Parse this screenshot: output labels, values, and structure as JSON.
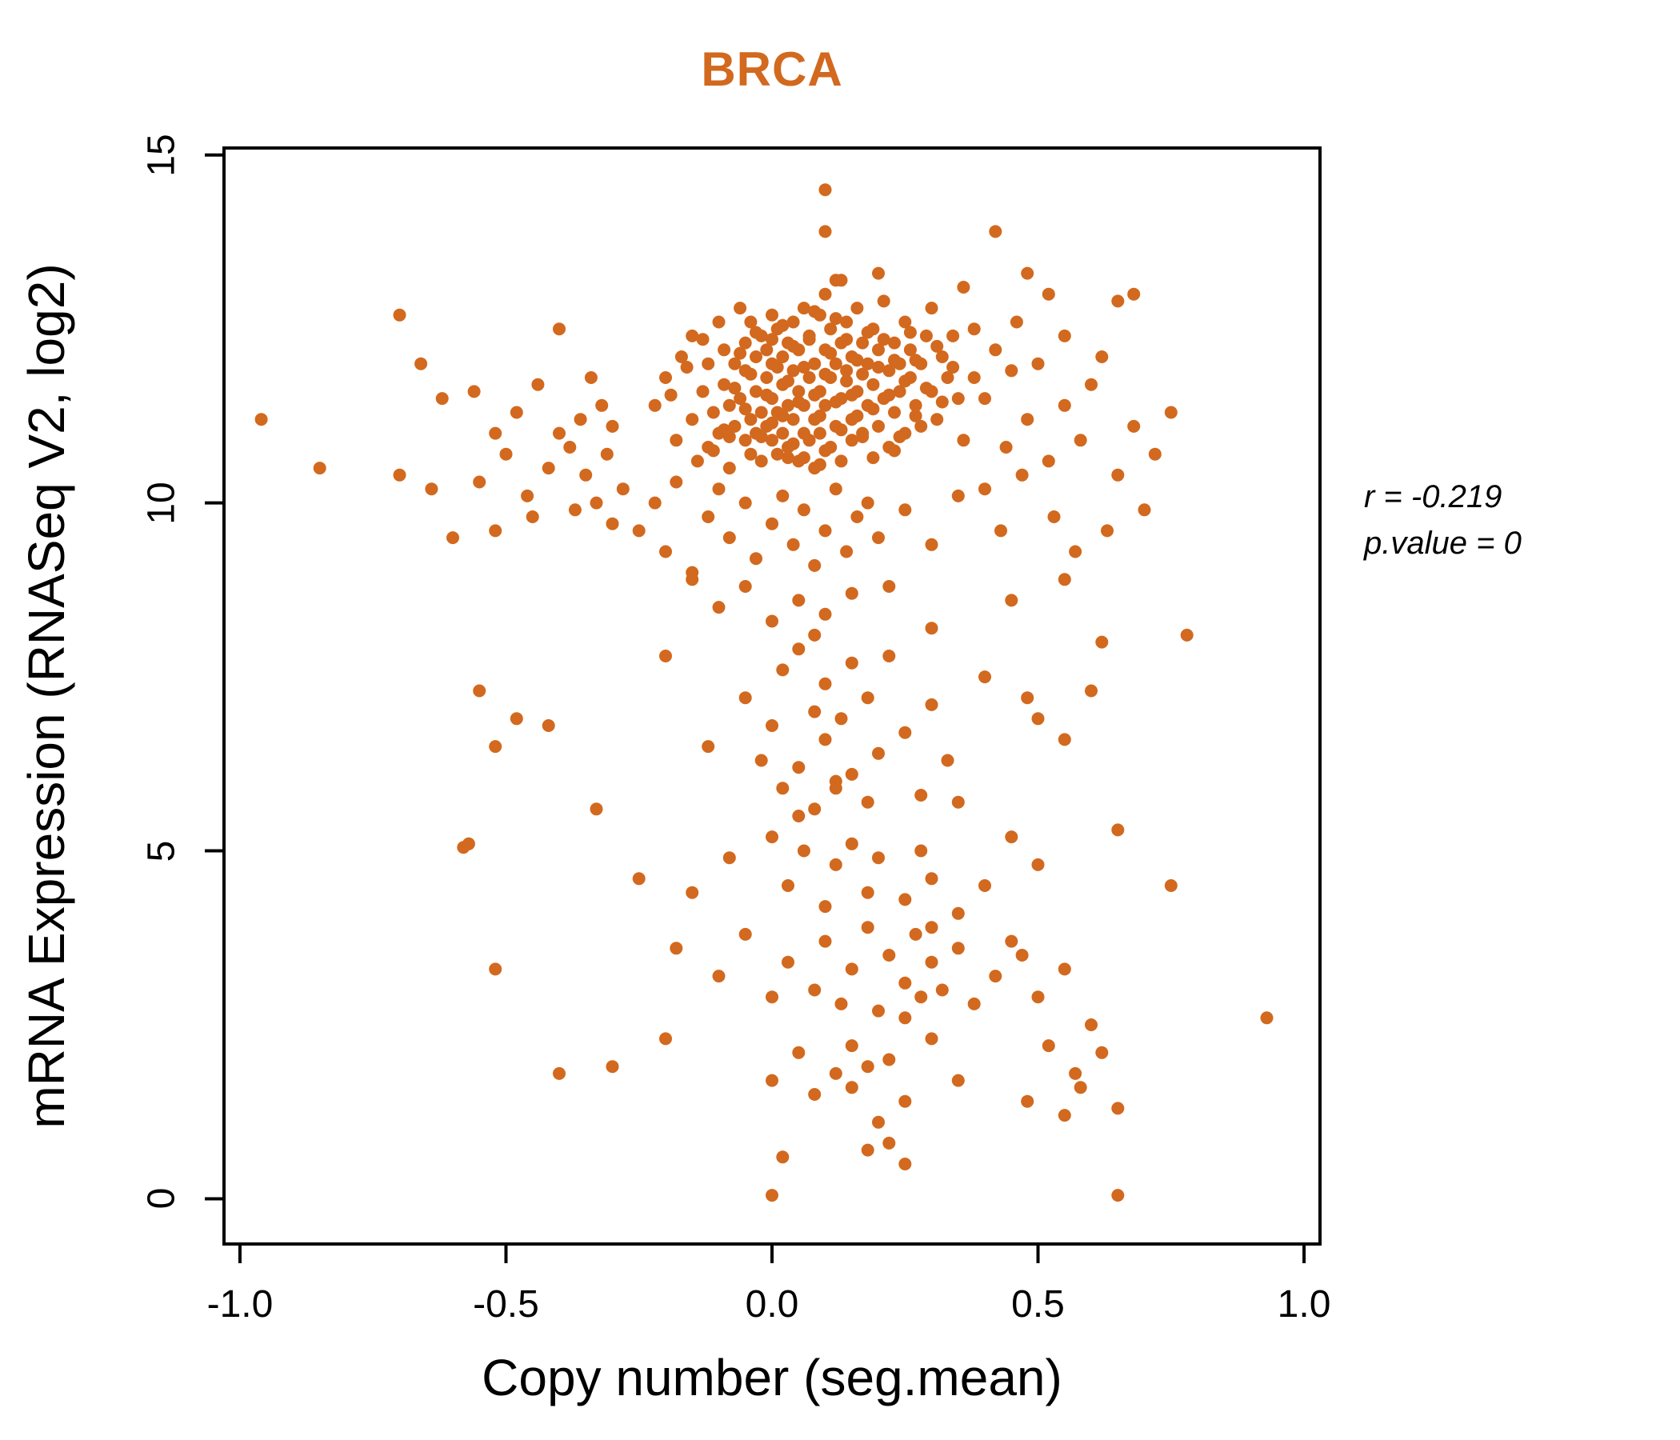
{
  "title": "BRCA",
  "title_color": "#d2691e",
  "point_color": "#d2691e",
  "annotation": {
    "line1": "r = -0.219",
    "line2": "p.value = 0"
  },
  "chart_data": {
    "type": "scatter",
    "title": "BRCA",
    "xlabel": "Copy number (seg.mean)",
    "ylabel": "mRNA Expression (RNASeq V2, log2)",
    "xlim": [
      -1.03,
      1.03
    ],
    "ylim": [
      -0.65,
      15.1
    ],
    "xticks": [
      -1.0,
      -0.5,
      0.0,
      0.5,
      1.0
    ],
    "yticks": [
      0,
      5,
      10,
      15
    ],
    "xtick_labels": [
      "-1.0",
      "-0.5",
      "0.0",
      "0.5",
      "1.0"
    ],
    "ytick_labels": [
      "0",
      "5",
      "10",
      "15"
    ],
    "grid": false,
    "legend_position": "none",
    "correlation_r": -0.219,
    "p_value": 0,
    "points": [
      [
        -0.22,
        11.4
      ],
      [
        -0.2,
        11.8
      ],
      [
        -0.18,
        10.9
      ],
      [
        -0.17,
        12.1
      ],
      [
        -0.15,
        11.2
      ],
      [
        -0.15,
        12.4
      ],
      [
        -0.14,
        10.6
      ],
      [
        -0.13,
        11.6
      ],
      [
        -0.12,
        12.0
      ],
      [
        -0.12,
        10.8
      ],
      [
        -0.11,
        11.3
      ],
      [
        -0.1,
        12.6
      ],
      [
        -0.1,
        11.0
      ],
      [
        -0.09,
        11.7
      ],
      [
        -0.09,
        12.2
      ],
      [
        -0.08,
        10.5
      ],
      [
        -0.08,
        11.4
      ],
      [
        -0.07,
        12.0
      ],
      [
        -0.07,
        11.1
      ],
      [
        -0.06,
        12.8
      ],
      [
        -0.06,
        11.5
      ],
      [
        -0.05,
        10.9
      ],
      [
        -0.05,
        11.9
      ],
      [
        -0.05,
        12.3
      ],
      [
        -0.04,
        11.2
      ],
      [
        -0.04,
        12.6
      ],
      [
        -0.04,
        10.7
      ],
      [
        -0.03,
        11.6
      ],
      [
        -0.03,
        12.1
      ],
      [
        -0.03,
        11.0
      ],
      [
        -0.02,
        12.4
      ],
      [
        -0.02,
        11.3
      ],
      [
        -0.02,
        10.6
      ],
      [
        -0.01,
        11.8
      ],
      [
        -0.01,
        12.2
      ],
      [
        -0.01,
        11.1
      ],
      [
        0.0,
        12.7
      ],
      [
        0.0,
        11.5
      ],
      [
        0.0,
        10.9
      ],
      [
        0.0,
        12.0
      ],
      [
        0.01,
        11.3
      ],
      [
        0.01,
        12.5
      ],
      [
        0.01,
        10.7
      ],
      [
        0.02,
        11.7
      ],
      [
        0.02,
        12.1
      ],
      [
        0.02,
        11.0
      ],
      [
        0.03,
        12.3
      ],
      [
        0.03,
        11.4
      ],
      [
        0.03,
        10.8
      ],
      [
        0.04,
        11.9
      ],
      [
        0.04,
        12.6
      ],
      [
        0.04,
        11.2
      ],
      [
        0.05,
        10.6
      ],
      [
        0.05,
        11.6
      ],
      [
        0.05,
        12.2
      ],
      [
        0.06,
        11.0
      ],
      [
        0.06,
        12.8
      ],
      [
        0.06,
        11.4
      ],
      [
        0.07,
        11.8
      ],
      [
        0.07,
        10.9
      ],
      [
        0.07,
        12.4
      ],
      [
        0.08,
        11.2
      ],
      [
        0.08,
        12.0
      ],
      [
        0.08,
        10.5
      ],
      [
        0.09,
        11.6
      ],
      [
        0.09,
        12.7
      ],
      [
        0.09,
        11.0
      ],
      [
        0.1,
        12.2
      ],
      [
        0.1,
        11.4
      ],
      [
        0.1,
        13.0
      ],
      [
        0.11,
        11.8
      ],
      [
        0.11,
        10.8
      ],
      [
        0.11,
        12.5
      ],
      [
        0.12,
        11.1
      ],
      [
        0.12,
        12.0
      ],
      [
        0.12,
        13.2
      ],
      [
        0.13,
        11.5
      ],
      [
        0.13,
        12.3
      ],
      [
        0.13,
        10.6
      ],
      [
        0.14,
        11.9
      ],
      [
        0.14,
        12.6
      ],
      [
        0.15,
        11.2
      ],
      [
        0.15,
        12.1
      ],
      [
        0.15,
        10.9
      ],
      [
        0.16,
        11.6
      ],
      [
        0.16,
        12.8
      ],
      [
        0.17,
        11.0
      ],
      [
        0.17,
        12.3
      ],
      [
        0.18,
        11.4
      ],
      [
        0.18,
        12.0
      ],
      [
        0.19,
        11.7
      ],
      [
        0.19,
        12.5
      ],
      [
        0.2,
        11.1
      ],
      [
        0.2,
        12.2
      ],
      [
        0.21,
        11.5
      ],
      [
        0.21,
        12.9
      ],
      [
        0.22,
        11.9
      ],
      [
        0.22,
        10.8
      ],
      [
        0.23,
        12.3
      ],
      [
        0.23,
        11.3
      ],
      [
        0.24,
        12.0
      ],
      [
        0.24,
        11.6
      ],
      [
        0.25,
        12.6
      ],
      [
        0.25,
        11.0
      ],
      [
        0.26,
        11.8
      ],
      [
        0.26,
        12.2
      ],
      [
        0.27,
        11.4
      ],
      [
        0.28,
        12.0
      ],
      [
        0.28,
        11.1
      ],
      [
        0.29,
        12.4
      ],
      [
        0.3,
        11.6
      ],
      [
        0.3,
        12.8
      ],
      [
        0.31,
        11.2
      ],
      [
        0.32,
        12.1
      ],
      [
        0.33,
        11.8
      ],
      [
        0.34,
        12.4
      ],
      [
        0.35,
        11.5
      ],
      [
        -0.19,
        11.55
      ],
      [
        -0.16,
        11.95
      ],
      [
        -0.13,
        12.35
      ],
      [
        -0.11,
        10.75
      ],
      [
        -0.09,
        11.05
      ],
      [
        -0.07,
        11.65
      ],
      [
        -0.06,
        12.15
      ],
      [
        -0.05,
        11.35
      ],
      [
        -0.04,
        11.85
      ],
      [
        -0.03,
        12.45
      ],
      [
        -0.02,
        10.95
      ],
      [
        -0.01,
        11.55
      ],
      [
        0.0,
        12.35
      ],
      [
        0.0,
        11.15
      ],
      [
        0.01,
        11.95
      ],
      [
        0.02,
        12.55
      ],
      [
        0.02,
        11.25
      ],
      [
        0.03,
        11.75
      ],
      [
        0.04,
        10.85
      ],
      [
        0.04,
        12.25
      ],
      [
        0.05,
        11.45
      ],
      [
        0.06,
        11.95
      ],
      [
        0.06,
        10.65
      ],
      [
        0.07,
        12.35
      ],
      [
        0.08,
        11.55
      ],
      [
        0.08,
        12.75
      ],
      [
        0.09,
        11.25
      ],
      [
        0.1,
        11.85
      ],
      [
        0.1,
        10.75
      ],
      [
        0.11,
        12.15
      ],
      [
        0.12,
        11.45
      ],
      [
        0.12,
        12.65
      ],
      [
        0.13,
        11.05
      ],
      [
        0.14,
        11.75
      ],
      [
        0.14,
        12.35
      ],
      [
        0.15,
        11.55
      ],
      [
        0.16,
        12.05
      ],
      [
        0.17,
        11.85
      ],
      [
        0.17,
        10.95
      ],
      [
        0.18,
        12.45
      ],
      [
        0.19,
        11.35
      ],
      [
        0.2,
        11.95
      ],
      [
        0.21,
        12.35
      ],
      [
        0.22,
        11.55
      ],
      [
        0.23,
        12.05
      ],
      [
        0.24,
        10.95
      ],
      [
        0.25,
        11.75
      ],
      [
        0.26,
        12.45
      ],
      [
        0.27,
        11.25
      ],
      [
        0.27,
        12.05
      ],
      [
        0.29,
        11.65
      ],
      [
        0.31,
        12.25
      ],
      [
        0.32,
        11.45
      ],
      [
        0.34,
        11.95
      ],
      [
        0.16,
        11.25
      ],
      [
        0.09,
        10.55
      ],
      [
        0.03,
        10.65
      ],
      [
        -0.08,
        10.95
      ],
      [
        0.19,
        10.65
      ],
      [
        0.23,
        10.75
      ],
      [
        0.1,
        14.5
      ],
      [
        0.1,
        13.9
      ],
      [
        0.42,
        13.9
      ],
      [
        0.48,
        13.3
      ],
      [
        0.52,
        13.0
      ],
      [
        0.65,
        12.9
      ],
      [
        0.68,
        13.0
      ],
      [
        -0.7,
        12.7
      ],
      [
        0.36,
        13.1
      ],
      [
        0.2,
        13.3
      ],
      [
        0.13,
        13.2
      ],
      [
        -0.96,
        11.2
      ],
      [
        -0.85,
        10.5
      ],
      [
        -0.7,
        10.4
      ],
      [
        -0.66,
        12.0
      ],
      [
        -0.64,
        10.2
      ],
      [
        -0.62,
        11.5
      ],
      [
        -0.6,
        9.5
      ],
      [
        -0.56,
        11.6
      ],
      [
        -0.55,
        10.3
      ],
      [
        -0.52,
        11.0
      ],
      [
        -0.52,
        9.6
      ],
      [
        -0.5,
        10.7
      ],
      [
        -0.48,
        11.3
      ],
      [
        -0.46,
        10.1
      ],
      [
        -0.45,
        9.8
      ],
      [
        -0.44,
        11.7
      ],
      [
        -0.42,
        10.5
      ],
      [
        -0.4,
        12.5
      ],
      [
        -0.4,
        11.0
      ],
      [
        -0.38,
        10.8
      ],
      [
        -0.37,
        9.9
      ],
      [
        -0.36,
        11.2
      ],
      [
        -0.35,
        10.4
      ],
      [
        -0.34,
        11.8
      ],
      [
        -0.33,
        10.0
      ],
      [
        -0.32,
        11.4
      ],
      [
        -0.31,
        10.7
      ],
      [
        -0.3,
        11.1
      ],
      [
        -0.3,
        9.7
      ],
      [
        -0.52,
        3.3
      ],
      [
        -0.57,
        5.1
      ],
      [
        -0.52,
        6.5
      ],
      [
        -0.48,
        6.9
      ],
      [
        -0.42,
        6.8
      ],
      [
        -0.4,
        1.8
      ],
      [
        -0.33,
        5.6
      ],
      [
        -0.3,
        1.9
      ],
      [
        -0.28,
        10.2
      ],
      [
        -0.25,
        9.6
      ],
      [
        -0.22,
        10.0
      ],
      [
        -0.2,
        9.3
      ],
      [
        -0.18,
        10.3
      ],
      [
        -0.15,
        9.0
      ],
      [
        -0.12,
        9.8
      ],
      [
        -0.1,
        10.2
      ],
      [
        -0.08,
        9.5
      ],
      [
        -0.05,
        10.0
      ],
      [
        -0.03,
        9.2
      ],
      [
        0.0,
        9.7
      ],
      [
        0.02,
        10.1
      ],
      [
        0.04,
        9.4
      ],
      [
        0.06,
        9.9
      ],
      [
        0.08,
        9.1
      ],
      [
        0.1,
        9.6
      ],
      [
        0.12,
        10.2
      ],
      [
        0.14,
        9.3
      ],
      [
        0.16,
        9.8
      ],
      [
        0.18,
        10.0
      ],
      [
        0.2,
        9.5
      ],
      [
        0.25,
        9.9
      ],
      [
        0.3,
        9.4
      ],
      [
        0.35,
        10.1
      ],
      [
        0.05,
        8.6
      ],
      [
        0.0,
        8.3
      ],
      [
        -0.05,
        8.8
      ],
      [
        0.1,
        8.4
      ],
      [
        0.15,
        8.7
      ],
      [
        0.08,
        8.1
      ],
      [
        -0.1,
        8.5
      ],
      [
        0.22,
        8.8
      ],
      [
        0.3,
        8.2
      ],
      [
        -0.15,
        8.9
      ],
      [
        0.45,
        8.6
      ],
      [
        0.55,
        8.9
      ],
      [
        0.78,
        8.1
      ],
      [
        0.62,
        8.0
      ],
      [
        -0.55,
        7.3
      ],
      [
        -0.2,
        7.8
      ],
      [
        -0.12,
        6.5
      ],
      [
        -0.05,
        7.2
      ],
      [
        0.0,
        6.8
      ],
      [
        0.02,
        7.6
      ],
      [
        0.05,
        6.2
      ],
      [
        0.05,
        7.9
      ],
      [
        0.08,
        7.0
      ],
      [
        0.1,
        6.6
      ],
      [
        0.1,
        7.4
      ],
      [
        0.12,
        5.9
      ],
      [
        0.13,
        6.9
      ],
      [
        0.15,
        7.7
      ],
      [
        0.15,
        6.1
      ],
      [
        0.18,
        7.2
      ],
      [
        0.2,
        6.4
      ],
      [
        0.22,
        7.8
      ],
      [
        0.25,
        6.7
      ],
      [
        0.28,
        5.8
      ],
      [
        0.3,
        7.1
      ],
      [
        0.33,
        6.3
      ],
      [
        0.4,
        7.5
      ],
      [
        0.48,
        7.2
      ],
      [
        0.5,
        6.9
      ],
      [
        0.55,
        6.6
      ],
      [
        0.6,
        7.3
      ],
      [
        0.35,
        5.7
      ],
      [
        0.08,
        5.6
      ],
      [
        0.12,
        6.0
      ],
      [
        0.02,
        5.9
      ],
      [
        -0.02,
        6.3
      ],
      [
        0.18,
        5.7
      ],
      [
        0.05,
        5.5
      ],
      [
        -0.58,
        5.05
      ],
      [
        -0.25,
        4.6
      ],
      [
        -0.15,
        4.4
      ],
      [
        -0.08,
        4.9
      ],
      [
        0.0,
        5.2
      ],
      [
        0.03,
        4.5
      ],
      [
        0.06,
        5.0
      ],
      [
        0.1,
        4.2
      ],
      [
        0.12,
        4.8
      ],
      [
        0.15,
        5.1
      ],
      [
        0.18,
        4.4
      ],
      [
        0.2,
        4.9
      ],
      [
        0.25,
        4.3
      ],
      [
        0.28,
        5.0
      ],
      [
        0.3,
        4.6
      ],
      [
        0.4,
        4.5
      ],
      [
        0.45,
        5.2
      ],
      [
        0.5,
        4.8
      ],
      [
        0.65,
        5.3
      ],
      [
        0.75,
        4.5
      ],
      [
        0.35,
        4.1
      ],
      [
        -0.18,
        3.6
      ],
      [
        -0.1,
        3.2
      ],
      [
        -0.05,
        3.8
      ],
      [
        0.0,
        2.9
      ],
      [
        0.03,
        3.4
      ],
      [
        0.08,
        3.0
      ],
      [
        0.1,
        3.7
      ],
      [
        0.13,
        2.8
      ],
      [
        0.15,
        3.3
      ],
      [
        0.18,
        3.9
      ],
      [
        0.2,
        2.7
      ],
      [
        0.22,
        3.5
      ],
      [
        0.25,
        3.1
      ],
      [
        0.27,
        3.8
      ],
      [
        0.28,
        2.9
      ],
      [
        0.3,
        3.4
      ],
      [
        0.32,
        3.0
      ],
      [
        0.35,
        3.6
      ],
      [
        0.38,
        2.8
      ],
      [
        0.42,
        3.2
      ],
      [
        0.45,
        3.7
      ],
      [
        0.5,
        2.9
      ],
      [
        0.55,
        3.3
      ],
      [
        0.3,
        3.9
      ],
      [
        0.25,
        2.6
      ],
      [
        0.47,
        3.5
      ],
      [
        0.6,
        2.5
      ],
      [
        0.93,
        2.6
      ],
      [
        -0.2,
        2.3
      ],
      [
        0.0,
        1.7
      ],
      [
        0.05,
        2.1
      ],
      [
        0.08,
        1.5
      ],
      [
        0.12,
        1.8
      ],
      [
        0.15,
        2.2
      ],
      [
        0.15,
        1.6
      ],
      [
        0.18,
        1.9
      ],
      [
        0.22,
        2.0
      ],
      [
        0.25,
        1.4
      ],
      [
        0.3,
        2.3
      ],
      [
        0.35,
        1.7
      ],
      [
        0.48,
        1.4
      ],
      [
        0.52,
        2.2
      ],
      [
        0.57,
        1.8
      ],
      [
        0.58,
        1.6
      ],
      [
        0.62,
        2.1
      ],
      [
        0.65,
        1.3
      ],
      [
        0.2,
        1.1
      ],
      [
        0.55,
        1.2
      ],
      [
        0.0,
        0.05
      ],
      [
        0.65,
        0.05
      ],
      [
        0.02,
        0.6
      ],
      [
        0.22,
        0.8
      ],
      [
        0.25,
        0.5
      ],
      [
        0.18,
        0.7
      ],
      [
        0.4,
        11.5
      ],
      [
        0.42,
        12.2
      ],
      [
        0.44,
        10.8
      ],
      [
        0.45,
        11.9
      ],
      [
        0.46,
        12.6
      ],
      [
        0.48,
        11.2
      ],
      [
        0.5,
        12.0
      ],
      [
        0.52,
        10.6
      ],
      [
        0.55,
        11.4
      ],
      [
        0.55,
        12.4
      ],
      [
        0.58,
        10.9
      ],
      [
        0.6,
        11.7
      ],
      [
        0.62,
        12.1
      ],
      [
        0.65,
        10.4
      ],
      [
        0.68,
        11.1
      ],
      [
        0.7,
        9.9
      ],
      [
        0.72,
        10.7
      ],
      [
        0.75,
        11.3
      ],
      [
        0.4,
        10.2
      ],
      [
        0.43,
        9.6
      ],
      [
        0.47,
        10.4
      ],
      [
        0.53,
        9.8
      ],
      [
        0.57,
        9.3
      ],
      [
        0.63,
        9.6
      ],
      [
        0.36,
        10.9
      ],
      [
        0.38,
        11.8
      ],
      [
        0.38,
        12.5
      ]
    ]
  }
}
